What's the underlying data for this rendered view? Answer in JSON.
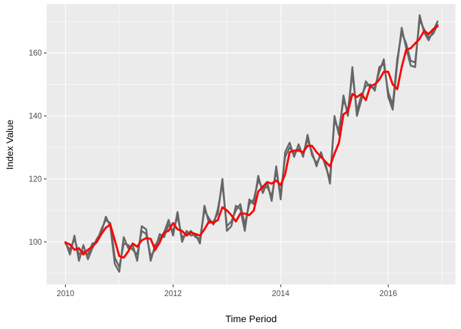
{
  "chart_data": {
    "type": "line",
    "title": "",
    "xlabel": "Time Period",
    "ylabel": "Index Value",
    "xlim": [
      2009.65,
      2017.25
    ],
    "ylim": [
      86.5,
      175.5
    ],
    "x_ticks": [
      2010,
      2012,
      2014,
      2016
    ],
    "x_tick_labels": [
      "2010",
      "2012",
      "2014",
      "2016"
    ],
    "y_ticks": [
      100,
      120,
      140,
      160
    ],
    "y_tick_labels": [
      "100",
      "120",
      "140",
      "160"
    ],
    "grid": true,
    "legend": "none",
    "colors": {
      "panel_bg": "#ebebeb",
      "grid": "#ffffff",
      "raw": "#666666",
      "smoothed": "#ff0000"
    },
    "series": [
      {
        "color": "#666666",
        "x": [
          2010.0,
          2010.083,
          2010.167,
          2010.25,
          2010.333,
          2010.417,
          2010.5,
          2010.583,
          2010.667,
          2010.75,
          2010.833,
          2010.917,
          2011.0,
          2011.083,
          2011.167,
          2011.25,
          2011.333,
          2011.417,
          2011.5,
          2011.583,
          2011.667,
          2011.75,
          2011.833,
          2011.917,
          2012.0,
          2012.083,
          2012.167,
          2012.25,
          2012.333,
          2012.417,
          2012.5,
          2012.583,
          2012.667,
          2012.75,
          2012.833,
          2012.917,
          2013.0,
          2013.083,
          2013.167,
          2013.25,
          2013.333,
          2013.417,
          2013.5,
          2013.583,
          2013.667,
          2013.75,
          2013.833,
          2013.917,
          2014.0,
          2014.083,
          2014.167,
          2014.25,
          2014.333,
          2014.417,
          2014.5,
          2014.583,
          2014.667,
          2014.75,
          2014.833,
          2014.917,
          2015.0,
          2015.083,
          2015.167,
          2015.25,
          2015.333,
          2015.417,
          2015.5,
          2015.583,
          2015.667,
          2015.75,
          2015.833,
          2015.917,
          2016.0,
          2016.083,
          2016.167,
          2016.25,
          2016.333,
          2016.417,
          2016.5,
          2016.583,
          2016.667,
          2016.75,
          2016.833,
          2016.917
        ],
        "values": [
          100,
          96,
          102,
          94,
          99,
          94.5,
          98,
          101,
          103,
          108,
          105,
          93,
          90.5,
          101.5,
          98,
          99,
          94,
          105,
          104,
          94,
          99,
          101,
          103,
          107,
          102,
          109.5,
          100,
          103.5,
          102,
          102.5,
          99.5,
          111.5,
          106,
          106.5,
          109,
          120,
          103.5,
          105,
          111.5,
          110.5,
          103.5,
          113.5,
          112,
          121,
          115.5,
          119,
          113,
          124,
          113.5,
          128.5,
          131.5,
          127,
          131,
          127,
          134,
          127.5,
          125,
          127.5,
          125,
          118.5,
          140,
          134,
          146.5,
          140,
          155.5,
          140,
          145,
          151,
          149,
          149,
          154,
          158,
          146,
          142,
          156.5,
          168,
          161.5,
          156,
          155.5,
          172,
          166.5,
          164,
          167,
          170
        ]
      },
      {
        "color": "#666666",
        "x": [
          2010.0,
          2010.083,
          2010.167,
          2010.25,
          2010.333,
          2010.417,
          2010.5,
          2010.583,
          2010.667,
          2010.75,
          2010.833,
          2010.917,
          2011.0,
          2011.083,
          2011.167,
          2011.25,
          2011.333,
          2011.417,
          2011.5,
          2011.583,
          2011.667,
          2011.75,
          2011.833,
          2011.917,
          2012.0,
          2012.083,
          2012.167,
          2012.25,
          2012.333,
          2012.417,
          2012.5,
          2012.583,
          2012.667,
          2012.75,
          2012.833,
          2012.917,
          2013.0,
          2013.083,
          2013.167,
          2013.25,
          2013.333,
          2013.417,
          2013.5,
          2013.583,
          2013.667,
          2013.75,
          2013.833,
          2013.917,
          2014.0,
          2014.083,
          2014.167,
          2014.25,
          2014.333,
          2014.417,
          2014.5,
          2014.583,
          2014.667,
          2014.75,
          2014.833,
          2014.917,
          2015.0,
          2015.083,
          2015.167,
          2015.25,
          2015.333,
          2015.417,
          2015.5,
          2015.583,
          2015.667,
          2015.75,
          2015.833,
          2015.917,
          2016.0,
          2016.083,
          2016.167,
          2016.25,
          2016.333,
          2016.417,
          2016.5,
          2016.583,
          2016.667,
          2016.75,
          2016.833,
          2016.917
        ],
        "values": [
          99.5,
          97.5,
          101,
          96,
          97,
          96,
          99.5,
          100,
          104,
          107,
          106,
          95,
          92,
          99.5,
          99,
          97.5,
          96,
          103.5,
          102.5,
          95.5,
          97.5,
          102.5,
          101.5,
          105.5,
          103.5,
          108,
          101.5,
          102.5,
          103.5,
          101.5,
          101,
          110,
          107.5,
          105.5,
          110.5,
          118.5,
          105,
          106.5,
          110,
          112,
          105.5,
          112,
          113.5,
          119.5,
          117,
          117.5,
          114.5,
          122.5,
          115,
          127,
          130,
          128,
          129.5,
          128,
          132.5,
          128.5,
          124,
          128.5,
          124,
          120,
          138.5,
          135.5,
          145,
          141.5,
          153.5,
          141.5,
          146.5,
          149.5,
          150,
          148,
          155.5,
          156.5,
          147.5,
          143.5,
          158,
          166.5,
          163,
          157.5,
          157,
          170.5,
          167.5,
          165,
          166,
          169
        ]
      },
      {
        "color": "#ff0000",
        "x": [
          2010.0,
          2010.083,
          2010.167,
          2010.25,
          2010.333,
          2010.417,
          2010.5,
          2010.583,
          2010.667,
          2010.75,
          2010.833,
          2010.917,
          2011.0,
          2011.083,
          2011.167,
          2011.25,
          2011.333,
          2011.417,
          2011.5,
          2011.583,
          2011.667,
          2011.75,
          2011.833,
          2011.917,
          2012.0,
          2012.083,
          2012.167,
          2012.25,
          2012.333,
          2012.417,
          2012.5,
          2012.583,
          2012.667,
          2012.75,
          2012.833,
          2012.917,
          2013.0,
          2013.083,
          2013.167,
          2013.25,
          2013.333,
          2013.417,
          2013.5,
          2013.583,
          2013.667,
          2013.75,
          2013.833,
          2013.917,
          2014.0,
          2014.083,
          2014.167,
          2014.25,
          2014.333,
          2014.417,
          2014.5,
          2014.583,
          2014.667,
          2014.75,
          2014.833,
          2014.917,
          2015.0,
          2015.083,
          2015.167,
          2015.25,
          2015.333,
          2015.417,
          2015.5,
          2015.583,
          2015.667,
          2015.75,
          2015.833,
          2015.917,
          2016.0,
          2016.083,
          2016.167,
          2016.25,
          2016.333,
          2016.417,
          2016.5,
          2016.583,
          2016.667,
          2016.75,
          2016.833,
          2016.917
        ],
        "values": [
          99.8,
          99.2,
          97.5,
          98,
          96,
          97.5,
          98.5,
          100,
          102.5,
          104.5,
          105.5,
          100.5,
          95.5,
          95,
          97,
          99.5,
          98.5,
          100.5,
          101.2,
          101,
          97.5,
          99.8,
          103,
          103.5,
          106,
          104,
          103.5,
          102,
          103,
          102.5,
          102,
          104,
          106.5,
          106,
          107,
          111,
          110,
          108.5,
          106.5,
          109,
          109,
          108.5,
          110,
          116,
          117.5,
          119,
          118.5,
          119.5,
          118,
          121.5,
          128.5,
          129,
          129,
          128.5,
          130.5,
          130.5,
          128.5,
          127,
          125.5,
          124,
          128,
          131.5,
          140.5,
          141.5,
          147,
          146,
          147,
          145,
          149.5,
          150,
          151.5,
          154,
          154,
          150,
          148.5,
          155.5,
          161,
          161.5,
          163,
          164.5,
          167,
          166,
          167.5,
          168.5
        ]
      }
    ]
  }
}
